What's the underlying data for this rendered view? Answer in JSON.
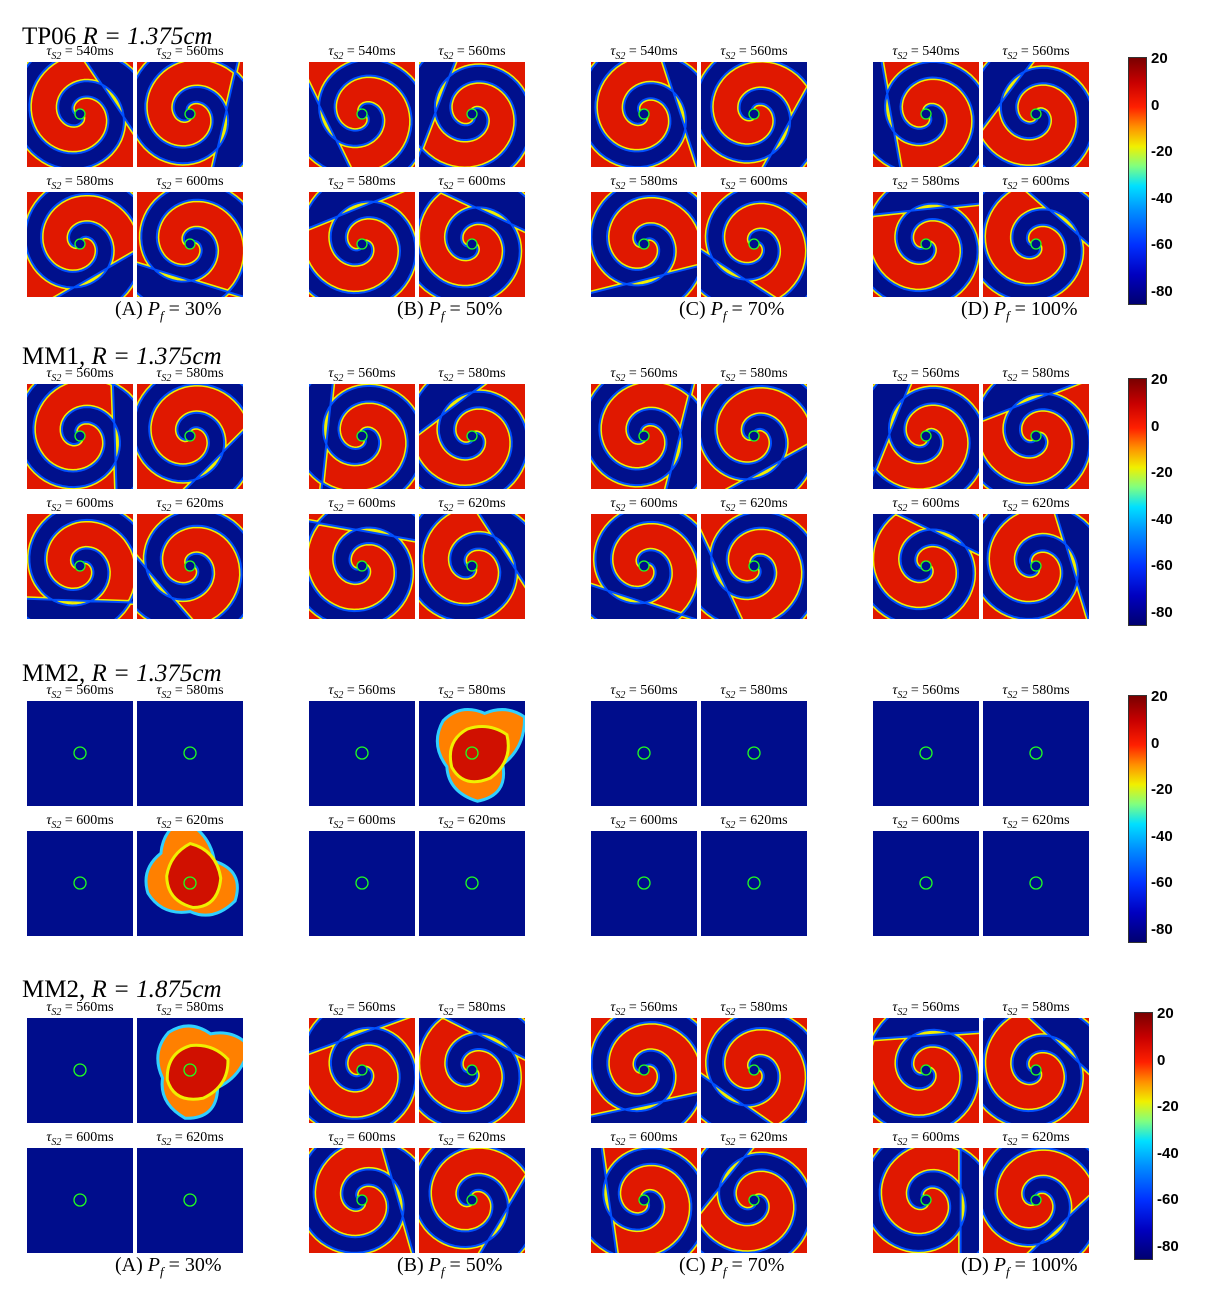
{
  "rows": [
    {
      "title_prefix": "TP06 ",
      "title_math": "R = 1.375cm",
      "taus": [
        "540ms",
        "560ms",
        "580ms",
        "600ms"
      ],
      "panels": [
        [
          "spiral",
          "spiral",
          "spiral",
          "spiral"
        ],
        [
          "spiral",
          "spiral",
          "spiral",
          "spiral"
        ],
        [
          "spiral",
          "spiral",
          "spiral",
          "spiral"
        ],
        [
          "spiral",
          "spiral",
          "spiral",
          "spiral"
        ]
      ],
      "show_captions": true
    },
    {
      "title_prefix": "MM1, ",
      "title_math": "R = 1.375cm",
      "taus": [
        "560ms",
        "580ms",
        "600ms",
        "620ms"
      ],
      "panels": [
        [
          "spiral",
          "spiral",
          "spiral",
          "spiral"
        ],
        [
          "spiral",
          "spiral",
          "spiral",
          "spiral"
        ],
        [
          "spiral",
          "spiral",
          "spiral",
          "spiral"
        ],
        [
          "spiral",
          "spiral",
          "spiral",
          "spiral"
        ]
      ],
      "show_captions": false
    },
    {
      "title_prefix": "MM2, ",
      "title_math": "R = 1.375cm",
      "taus": [
        "560ms",
        "580ms",
        "600ms",
        "620ms"
      ],
      "panels": [
        [
          "blank",
          "blank",
          "blank",
          "chaos"
        ],
        [
          "blank",
          "chaos",
          "blank",
          "blank"
        ],
        [
          "blank",
          "blank",
          "blank",
          "blank"
        ],
        [
          "blank",
          "blank",
          "blank",
          "blank"
        ]
      ],
      "show_captions": false
    },
    {
      "title_prefix": "MM2, ",
      "title_math": "R = 1.875cm",
      "taus": [
        "560ms",
        "580ms",
        "600ms",
        "620ms"
      ],
      "panels": [
        [
          "blank",
          "chaos",
          "blank",
          "blank"
        ],
        [
          "spiral",
          "spiral",
          "spiral",
          "spiral"
        ],
        [
          "spiral",
          "spiral",
          "spiral",
          "spiral"
        ],
        [
          "spiral",
          "spiral",
          "spiral",
          "spiral"
        ]
      ],
      "show_captions": true
    }
  ],
  "tau_symbol": "τ",
  "tau_subscript": "S2",
  "captions": [
    {
      "letter": "(A)",
      "value": "30%"
    },
    {
      "letter": "(B)",
      "value": "50%"
    },
    {
      "letter": "(C)",
      "value": "70%"
    },
    {
      "letter": "(D)",
      "value": "100%"
    }
  ],
  "caption_symbol": "P",
  "caption_subscript": "f",
  "colorbar_ticks": [
    "20",
    "0",
    "-20",
    "-40",
    "-60",
    "-80"
  ],
  "colors": {
    "background": "#000d8c",
    "front": "#e81000",
    "core_circle": "#20ff20"
  }
}
